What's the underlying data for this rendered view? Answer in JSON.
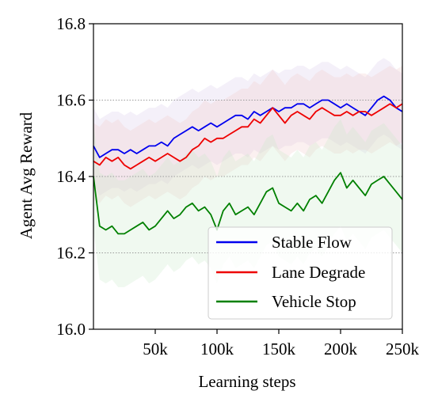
{
  "chart_data": {
    "type": "line",
    "xlabel": "Learning steps",
    "ylabel": "Agent Avg Reward",
    "xlim": [
      0,
      250000
    ],
    "ylim": [
      16.0,
      16.8
    ],
    "x_ticks": [
      50000,
      100000,
      150000,
      200000,
      250000
    ],
    "x_tick_labels": [
      "50k",
      "100k",
      "150k",
      "200k",
      "250k"
    ],
    "y_ticks": [
      16.0,
      16.2,
      16.4,
      16.6,
      16.8
    ],
    "y_tick_labels": [
      "16.0",
      "16.2",
      "16.4",
      "16.6",
      "16.8"
    ],
    "grid": "horizontal dotted at 16.2, 16.4, 16.6",
    "legend_position": "lower-right",
    "series": [
      {
        "name": "Stable Flow",
        "color": "#0000ee",
        "x": [
          0,
          5000,
          10000,
          15000,
          20000,
          25000,
          30000,
          35000,
          40000,
          45000,
          50000,
          55000,
          60000,
          65000,
          70000,
          75000,
          80000,
          85000,
          90000,
          95000,
          100000,
          105000,
          110000,
          115000,
          120000,
          125000,
          130000,
          135000,
          140000,
          145000,
          150000,
          155000,
          160000,
          165000,
          170000,
          175000,
          180000,
          185000,
          190000,
          195000,
          200000,
          205000,
          210000,
          215000,
          220000,
          225000,
          230000,
          235000,
          240000,
          245000,
          250000
        ],
        "values": [
          16.48,
          16.45,
          16.46,
          16.47,
          16.47,
          16.46,
          16.47,
          16.46,
          16.47,
          16.48,
          16.48,
          16.49,
          16.48,
          16.5,
          16.51,
          16.52,
          16.53,
          16.52,
          16.53,
          16.54,
          16.53,
          16.54,
          16.55,
          16.56,
          16.56,
          16.55,
          16.57,
          16.56,
          16.57,
          16.58,
          16.57,
          16.58,
          16.58,
          16.59,
          16.59,
          16.58,
          16.59,
          16.6,
          16.6,
          16.59,
          16.58,
          16.59,
          16.58,
          16.57,
          16.56,
          16.58,
          16.6,
          16.61,
          16.6,
          16.58,
          16.57
        ]
      },
      {
        "name": "Lane Degrade",
        "color": "#ee0000",
        "x": [
          0,
          5000,
          10000,
          15000,
          20000,
          25000,
          30000,
          35000,
          40000,
          45000,
          50000,
          55000,
          60000,
          65000,
          70000,
          75000,
          80000,
          85000,
          90000,
          95000,
          100000,
          105000,
          110000,
          115000,
          120000,
          125000,
          130000,
          135000,
          140000,
          145000,
          150000,
          155000,
          160000,
          165000,
          170000,
          175000,
          180000,
          185000,
          190000,
          195000,
          200000,
          205000,
          210000,
          215000,
          220000,
          225000,
          230000,
          235000,
          240000,
          245000,
          250000
        ],
        "values": [
          16.44,
          16.43,
          16.45,
          16.44,
          16.45,
          16.43,
          16.42,
          16.43,
          16.44,
          16.45,
          16.44,
          16.45,
          16.46,
          16.45,
          16.44,
          16.45,
          16.47,
          16.48,
          16.5,
          16.49,
          16.5,
          16.5,
          16.51,
          16.52,
          16.53,
          16.53,
          16.55,
          16.54,
          16.56,
          16.58,
          16.56,
          16.54,
          16.56,
          16.57,
          16.56,
          16.55,
          16.57,
          16.58,
          16.57,
          16.56,
          16.56,
          16.57,
          16.56,
          16.57,
          16.57,
          16.56,
          16.57,
          16.58,
          16.59,
          16.58,
          16.59
        ]
      },
      {
        "name": "Vehicle Stop",
        "color": "#008000",
        "x": [
          0,
          5000,
          10000,
          15000,
          20000,
          25000,
          30000,
          35000,
          40000,
          45000,
          50000,
          55000,
          60000,
          65000,
          70000,
          75000,
          80000,
          85000,
          90000,
          95000,
          100000,
          105000,
          110000,
          115000,
          120000,
          125000,
          130000,
          135000,
          140000,
          145000,
          150000,
          155000,
          160000,
          165000,
          170000,
          175000,
          180000,
          185000,
          190000,
          195000,
          200000,
          205000,
          210000,
          215000,
          220000,
          225000,
          230000,
          235000,
          240000,
          245000,
          250000
        ],
        "values": [
          16.4,
          16.27,
          16.26,
          16.27,
          16.25,
          16.25,
          16.26,
          16.27,
          16.28,
          16.26,
          16.27,
          16.29,
          16.31,
          16.29,
          16.3,
          16.32,
          16.33,
          16.31,
          16.32,
          16.3,
          16.26,
          16.31,
          16.33,
          16.3,
          16.31,
          16.32,
          16.3,
          16.33,
          16.36,
          16.37,
          16.33,
          16.32,
          16.31,
          16.33,
          16.31,
          16.34,
          16.35,
          16.33,
          16.36,
          16.39,
          16.41,
          16.37,
          16.39,
          16.37,
          16.35,
          16.38,
          16.39,
          16.4,
          16.38,
          16.36,
          16.34
        ]
      }
    ]
  }
}
